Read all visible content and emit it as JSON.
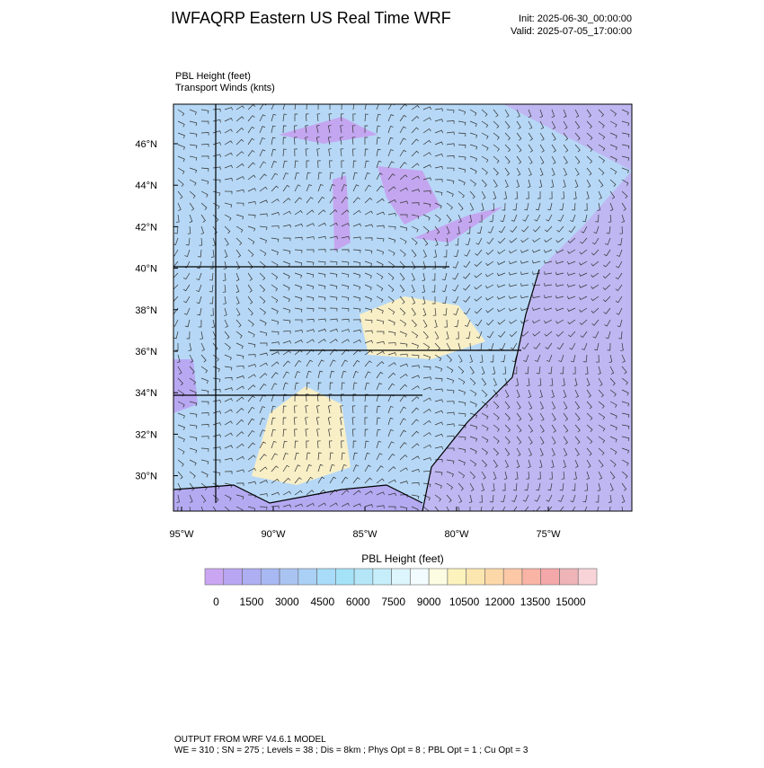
{
  "header": {
    "title": "IWFAQRP Eastern US Real Time WRF",
    "init": "Init: 2025-06-30_00:00:00",
    "valid": "Valid: 2025-07-05_17:00:00"
  },
  "map": {
    "field_label": "PBL Height   (feet)",
    "wind_label": "Transport Winds   (knts)",
    "lat_ticks": [
      {
        "value": 46,
        "label": "46°N"
      },
      {
        "value": 44,
        "label": "44°N"
      },
      {
        "value": 42,
        "label": "42°N"
      },
      {
        "value": 40,
        "label": "40°N"
      },
      {
        "value": 38,
        "label": "38°N"
      },
      {
        "value": 36,
        "label": "36°N"
      },
      {
        "value": 34,
        "label": "34°N"
      },
      {
        "value": 32,
        "label": "32°N"
      },
      {
        "value": 30,
        "label": "30°N"
      }
    ],
    "lon_ticks": [
      {
        "value": -95,
        "label": "95°W"
      },
      {
        "value": -90,
        "label": "90°W"
      },
      {
        "value": -85,
        "label": "85°W"
      },
      {
        "value": -80,
        "label": "80°W"
      },
      {
        "value": -75,
        "label": "75°W"
      }
    ]
  },
  "colorbar": {
    "title": "PBL Height  (feet)",
    "colors": [
      "#caa6f2",
      "#b9a6f2",
      "#aeaef2",
      "#a8b8f2",
      "#aac4f2",
      "#abd0f5",
      "#a8dcf8",
      "#a4e2f8",
      "#b4e6f8",
      "#c6eefa",
      "#ddf5fc",
      "#f2fcff",
      "#fcfce2",
      "#fcf2bc",
      "#fce6b0",
      "#fcd8a8",
      "#fcc8a6",
      "#fab4a6",
      "#f4a8aa",
      "#eeb4b8",
      "#f8d4d8"
    ],
    "labels": [
      0,
      1500,
      3000,
      4500,
      6000,
      7500,
      9000,
      10500,
      12000,
      13500,
      15000
    ]
  },
  "footer": {
    "line1": "OUTPUT FROM WRF V4.6.1 MODEL",
    "line2": "WE = 310 ; SN = 275 ; Levels = 38 ; Dis = 8km ; Phys Opt = 8 ; PBL Opt = 1 ; Cu Opt = 3"
  }
}
